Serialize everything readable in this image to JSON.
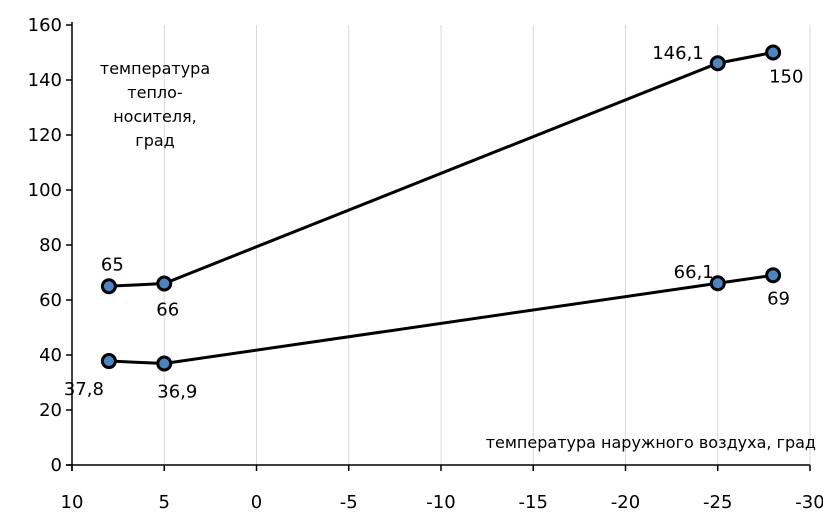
{
  "chart_data": {
    "type": "line",
    "x": [
      8,
      5,
      -25,
      -28
    ],
    "series": [
      {
        "values": [
          65,
          66,
          146.1,
          150
        ],
        "labels": [
          "65",
          "66",
          "146,1",
          "150"
        ]
      },
      {
        "values": [
          37.8,
          36.9,
          66.1,
          69
        ],
        "labels": [
          "37,8",
          "36,9",
          "66,1",
          "69"
        ]
      }
    ],
    "xlim": [
      10,
      -30
    ],
    "ylim": [
      0,
      160
    ],
    "x_ticks": [
      10,
      5,
      0,
      -5,
      -10,
      -15,
      -20,
      -25,
      -30
    ],
    "x_tick_labels": [
      "10",
      "5",
      "0",
      "-5",
      "-10",
      "-15",
      "-20",
      "-25",
      "-30"
    ],
    "y_ticks": [
      0,
      20,
      40,
      60,
      80,
      100,
      120,
      140,
      160
    ],
    "y_tick_labels": [
      "0",
      "20",
      "40",
      "60",
      "80",
      "100",
      "120",
      "140",
      "160"
    ],
    "xlabel": "температура наружного воздуха, град",
    "ylabel_lines": [
      "температура",
      "тепло-",
      "носителя,",
      "град"
    ],
    "grid": "vertical",
    "line_color": "#000000",
    "marker_fill": "#4a86c5",
    "marker_stroke": "#000000"
  }
}
